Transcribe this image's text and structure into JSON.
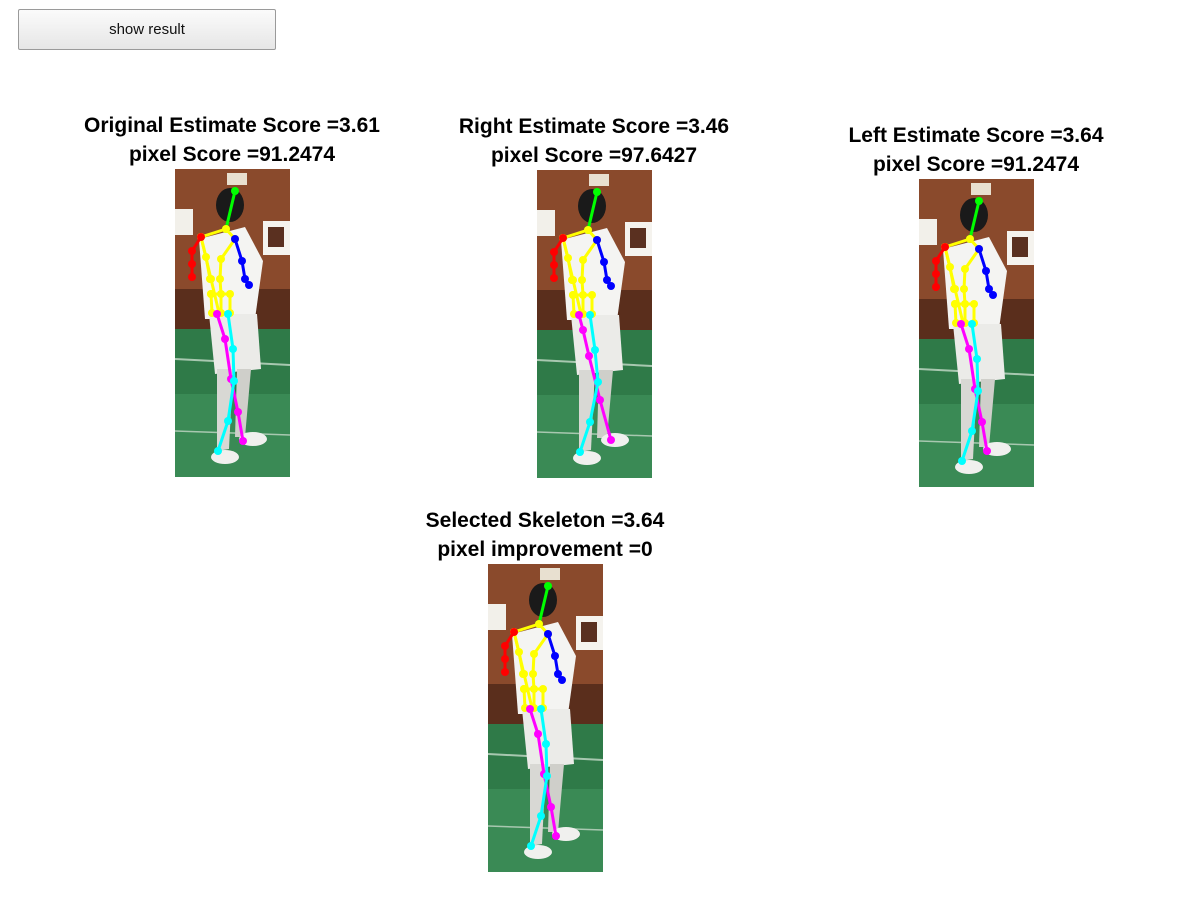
{
  "toolbar": {
    "show_result_label": "show result"
  },
  "panels": [
    {
      "title": "Original Estimate Score =3.61",
      "subtitle": "pixel Score =91.2474"
    },
    {
      "title": "Right Estimate Score =3.46",
      "subtitle": "pixel Score =97.6427"
    },
    {
      "title": "Left Estimate Score =3.64",
      "subtitle": "pixel Score =91.2474"
    },
    {
      "title": "Selected Skeleton =3.64",
      "subtitle": "pixel improvement =0"
    }
  ],
  "limb_colors": {
    "head": "#00ff00",
    "torso": "#ffff00",
    "right_arm": "#ff0000",
    "left_arm": "#0000ff",
    "leg_a": "#ff00ff",
    "leg_b": "#00ffff"
  }
}
